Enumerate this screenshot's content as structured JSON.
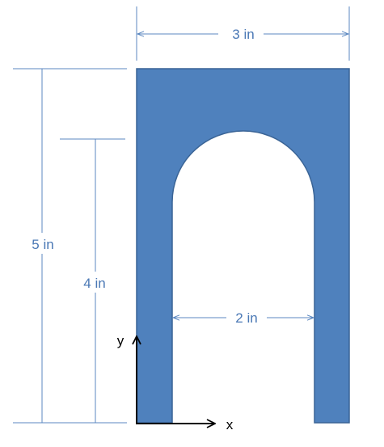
{
  "dimensions": {
    "width_top": "3 in",
    "height_total": "5 in",
    "height_arch": "4 in",
    "width_opening": "2 in"
  },
  "axes": {
    "x": "x",
    "y": "y"
  },
  "colors": {
    "shape_fill": "#4f81bd",
    "shape_stroke": "#3a6496",
    "dimension_line": "#5b87c0",
    "dimension_text": "#4a78b5",
    "axis": "#000000"
  }
}
